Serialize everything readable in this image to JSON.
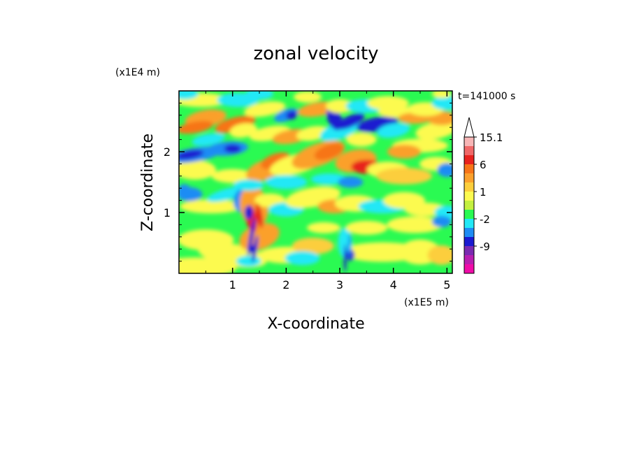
{
  "chart_data": {
    "type": "heatmap",
    "title": "zonal velocity",
    "xlabel": "X-coordinate",
    "ylabel": "Z-coordinate",
    "x_unit": "(x1E5 m)",
    "y_unit": "(x1E4 m)",
    "time_label": "t=141000 s",
    "xlim": [
      0,
      5.1
    ],
    "ylim": [
      0,
      3.0
    ],
    "x_ticks": [
      "1",
      "2",
      "3",
      "4",
      "5"
    ],
    "y_ticks": [
      "1",
      "2"
    ],
    "colorbar": {
      "labels": [
        "15.1",
        "6",
        "1",
        "-2",
        "-9"
      ],
      "levels": [
        15.1,
        12,
        9,
        6,
        3,
        2,
        1,
        0,
        -1,
        -2,
        -3,
        -6,
        -9,
        -12,
        -15
      ],
      "colors": [
        "#f7b6b6",
        "#f06868",
        "#e8221e",
        "#f77418",
        "#fba02c",
        "#fcce3c",
        "#fcfa50",
        "#c4f040",
        "#2afa52",
        "#22e8f6",
        "#1e8cf4",
        "#1a1ad0",
        "#7a2ab0",
        "#b81eb0",
        "#f00ca8"
      ],
      "extend_top": true
    },
    "field_notes": "Contour-filled velocity field; values span roughly -9 to 15 (x1E? units not printed)."
  }
}
